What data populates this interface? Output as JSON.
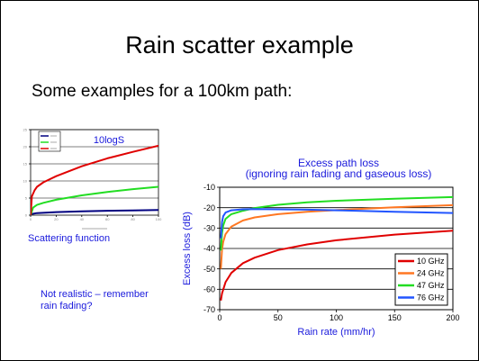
{
  "slide": {
    "title": "Rain scatter example",
    "subtitle": "Some examples for a 100km path:"
  },
  "annotations": {
    "scattering_caption": "Scattering function",
    "note_line1": "Not realistic – remember",
    "note_line2": "rain fading?"
  },
  "colors": {
    "red": "#e00000",
    "green": "#22dd22",
    "navy": "#000080",
    "orange": "#ff7722",
    "blue": "#2255ff",
    "grid": "#000000",
    "annotation_text": "#1a1adc"
  },
  "chart_data": [
    {
      "type": "line",
      "title": "10logS",
      "xlabel": "",
      "ylabel": "",
      "xlim": [
        0,
        100
      ],
      "ylim": [
        0,
        25
      ],
      "x_ticks": [
        0,
        20,
        40,
        60,
        80,
        100
      ],
      "y_ticks": [
        0,
        5,
        10,
        15,
        20,
        25
      ],
      "grid": true,
      "legend_position": "top-left",
      "series": [
        {
          "color": "#000080",
          "x": [
            0,
            5,
            20,
            40,
            60,
            80,
            100
          ],
          "y": [
            0.3,
            0.6,
            0.9,
            1.1,
            1.3,
            1.4,
            1.5
          ]
        },
        {
          "color": "#22dd22",
          "x": [
            0,
            2,
            5,
            10,
            20,
            40,
            60,
            80,
            100
          ],
          "y": [
            0,
            2.2,
            3.0,
            3.6,
            4.5,
            5.8,
            6.8,
            7.6,
            8.3
          ]
        },
        {
          "color": "#e00000",
          "x": [
            0,
            1,
            3,
            5,
            10,
            20,
            40,
            60,
            80,
            100
          ],
          "y": [
            0,
            5.5,
            7.2,
            8.3,
            9.6,
            11.4,
            14.3,
            16.6,
            18.5,
            20.3
          ]
        }
      ]
    },
    {
      "type": "line",
      "title": "Excess path loss",
      "subtitle": "(ignoring rain fading and gaseous loss)",
      "xlabel": "Rain rate (mm/hr)",
      "ylabel": "Excess loss (dB)",
      "xlim": [
        0,
        200
      ],
      "ylim": [
        -70,
        -10
      ],
      "x_ticks": [
        0,
        50,
        100,
        150,
        200
      ],
      "y_ticks": [
        -70,
        -60,
        -50,
        -40,
        -30,
        -20,
        -10
      ],
      "grid": true,
      "legend_position": "bottom-right",
      "series": [
        {
          "name": "10 GHz",
          "color": "#e00000",
          "x": [
            1,
            2,
            5,
            10,
            20,
            30,
            50,
            75,
            100,
            150,
            200
          ],
          "y": [
            -65.5,
            -62,
            -56.5,
            -52,
            -47.2,
            -44.5,
            -40.8,
            -38,
            -36,
            -33.2,
            -31.3
          ]
        },
        {
          "name": "24 GHz",
          "color": "#ff7722",
          "x": [
            1,
            2,
            3,
            5,
            10,
            20,
            30,
            50,
            75,
            100,
            150,
            200
          ],
          "y": [
            -50,
            -40.5,
            -36.8,
            -33,
            -29.3,
            -26.3,
            -24.8,
            -23.2,
            -22,
            -21.2,
            -19.8,
            -18.8
          ]
        },
        {
          "name": "47 GHz",
          "color": "#22dd22",
          "x": [
            1,
            2,
            3,
            5,
            10,
            20,
            30,
            50,
            75,
            100,
            150,
            200
          ],
          "y": [
            -41,
            -32.5,
            -28.8,
            -25.5,
            -23.2,
            -21.5,
            -20.2,
            -18.6,
            -17.4,
            -16.6,
            -15.6,
            -14.8
          ]
        },
        {
          "name": "76 GHz",
          "color": "#2255ff",
          "x": [
            1,
            2,
            3,
            5,
            10,
            20,
            30,
            50,
            75,
            100,
            150,
            200
          ],
          "y": [
            -35,
            -27,
            -24.2,
            -22.4,
            -21.3,
            -20.8,
            -20.7,
            -20.8,
            -21,
            -21.3,
            -22,
            -22.6
          ]
        }
      ]
    }
  ]
}
